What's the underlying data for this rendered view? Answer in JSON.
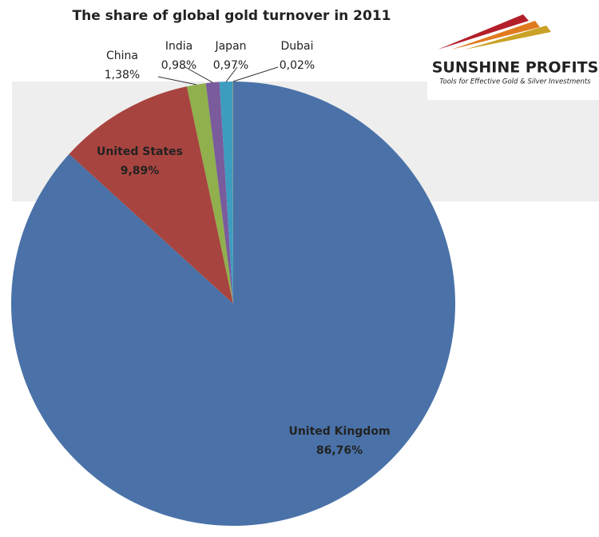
{
  "chart_data": {
    "type": "pie",
    "title": "The share of global gold turnover in 2011",
    "categories": [
      "United Kingdom",
      "United States",
      "China",
      "India",
      "Japan",
      "Dubai"
    ],
    "values": [
      86.76,
      9.89,
      1.38,
      0.98,
      0.97,
      0.02
    ],
    "value_labels": [
      "86,76%",
      "9,89%",
      "1,38%",
      "0,98%",
      "0,97%",
      "0,02%"
    ],
    "colors": [
      "#4a72a8",
      "#a8443f",
      "#8fb04c",
      "#7a5b9c",
      "#3e9cbf",
      "#e8892e"
    ]
  },
  "logo": {
    "name": "SUNSHINE PROFITS",
    "tagline": "Tools for Effective Gold & Silver Investments"
  }
}
